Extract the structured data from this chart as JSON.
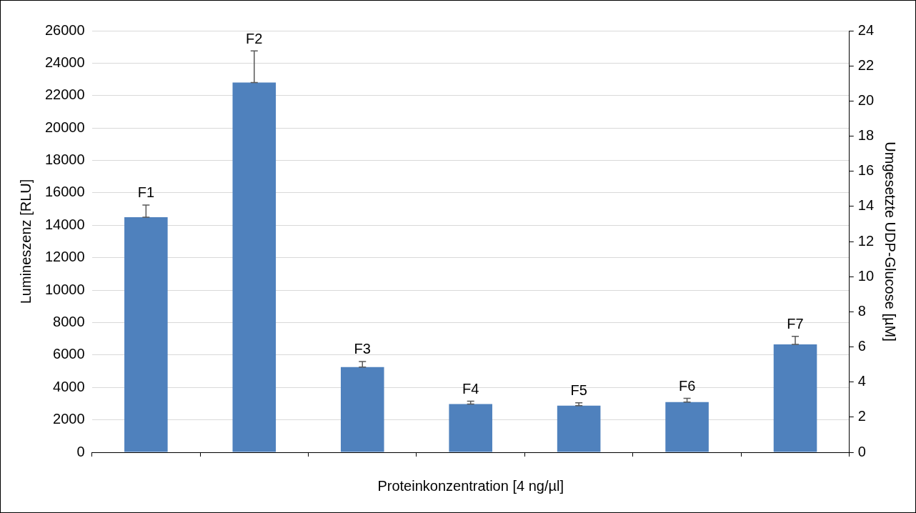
{
  "chart_data": {
    "type": "bar",
    "categories": [
      "F1",
      "F2",
      "F3",
      "F4",
      "F5",
      "F6",
      "F7"
    ],
    "series": [
      {
        "color": "#4f81bd",
        "values": [
          14500,
          22800,
          5250,
          2980,
          2880,
          3100,
          6650
        ],
        "errors": [
          [
            14500,
            15250
          ],
          [
            22800,
            24750
          ],
          [
            5250,
            5600
          ],
          [
            2980,
            3150
          ],
          [
            2880,
            3050
          ],
          [
            3100,
            3330
          ],
          [
            6650,
            7150
          ]
        ]
      }
    ],
    "xlabel": "Proteinkonzentration [4 ng/µl]",
    "ylabel": "Lumineszenz [RLU]",
    "y2label": "Umgesetzte UDP-Glucose [µM]",
    "ylim": [
      0,
      26000
    ],
    "yticks": [
      0,
      2000,
      4000,
      6000,
      8000,
      10000,
      12000,
      14000,
      16000,
      18000,
      20000,
      22000,
      24000,
      26000
    ],
    "y2lim": [
      0,
      24
    ],
    "y2ticks": [
      0,
      2,
      4,
      6,
      8,
      10,
      12,
      14,
      16,
      18,
      20,
      22,
      24
    ],
    "grid": "y",
    "legend": false,
    "tick_labels": "y"
  }
}
